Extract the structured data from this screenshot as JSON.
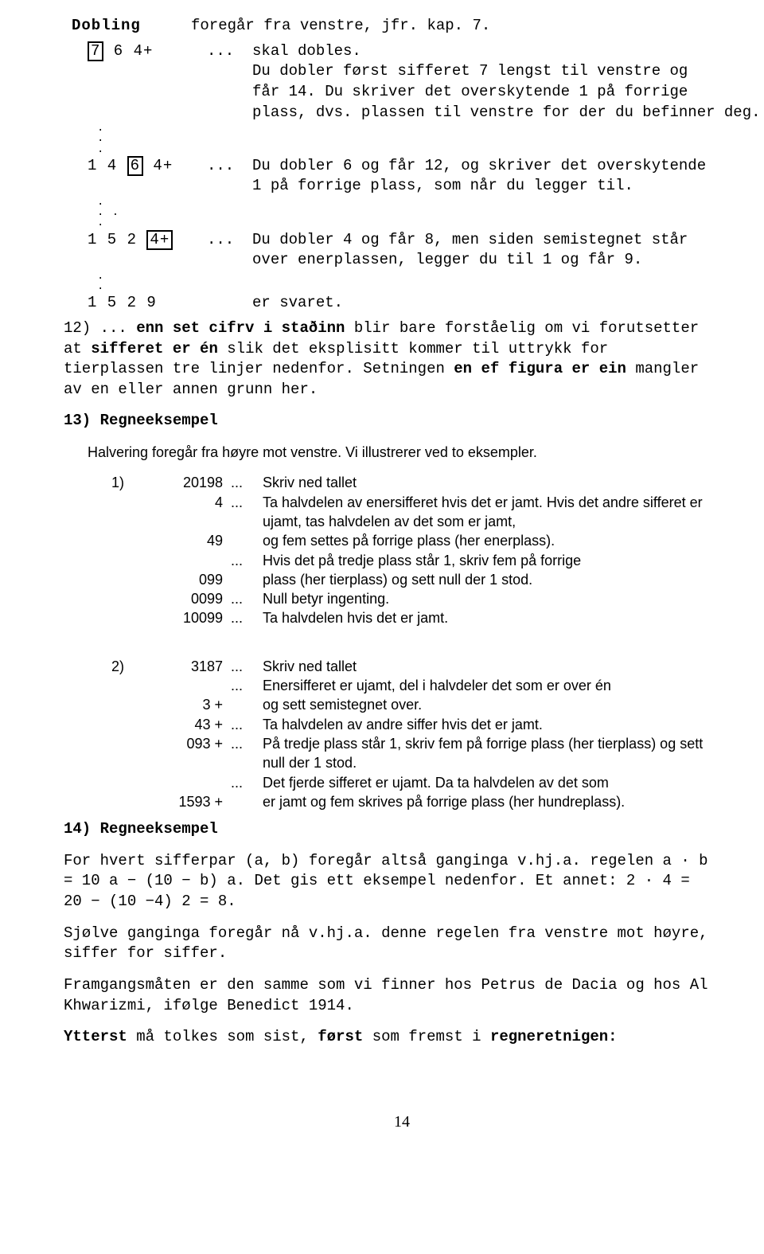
{
  "doblingHeader": "Dobling",
  "doblingHeaderRight": "foregår fra venstre, jfr. kap. 7.",
  "dobSteps": [
    {
      "leftPre": "",
      "boxed": "7",
      "leftPost": " 6 4+",
      "dots": "...",
      "lines": [
        "skal dobles.",
        "Du dobler først sifferet 7 lengst til venstre og",
        "får 14. Du skriver det overskytende 1 på forrige",
        "plass, dvs. plassen til venstre for der du befinner deg."
      ],
      "extraLeft": [
        ".",
        ".",
        "."
      ]
    },
    {
      "leftPre": "1 4 ",
      "boxed": "6",
      "leftPost": " 4+",
      "dots": "...",
      "lines": [
        "Du dobler 6 og får 12, og skriver det overskytende",
        "1 på forrige plass, som når du legger til."
      ],
      "extraLeft": [
        ".",
        ". .",
        "."
      ]
    },
    {
      "leftPre": "1 5 2 ",
      "boxed": "4+",
      "leftPost": "",
      "dots": "...",
      "lines": [
        "Du dobler 4 og får 8, men siden semistegnet står",
        "over enerplassen, legger du til 1 og får 9."
      ],
      "extraLeft": [
        ".",
        "."
      ]
    },
    {
      "leftPre": "1 5 2 9",
      "boxed": "",
      "leftPost": "",
      "dots": "",
      "lines": [
        "er svaret."
      ],
      "extraLeft": []
    }
  ],
  "note12": {
    "prefix": "12) ... ",
    "bold1": "enn set cifrv i staðinn",
    "mid1": " blir bare forståelig om vi forutsetter at ",
    "bold2": "sifferet er én",
    "mid2": " slik det eksplisitt kommer til uttrykk for tierplassen tre linjer nedenfor. Setningen ",
    "bold3": "en ef figura er ein",
    "mid3": " mangler av en eller annen grunn her."
  },
  "headings": {
    "h13": "13) Regneeksempel",
    "h14": "14) Regneeksempel"
  },
  "halveringIntro": "Halvering foregår fra høyre mot venstre. Vi illustrerer ved to eksempler.",
  "ex1": {
    "idx": "1)",
    "rows": [
      {
        "num": "20198",
        "dots": "...",
        "text": "Skriv ned tallet"
      },
      {
        "num": "4",
        "dots": "...",
        "text": "Ta halvdelen av enersifferet hvis det er jamt. Hvis det andre sifferet er ujamt, tas halvdelen av det som er jamt,"
      },
      {
        "num": "49",
        "dots": "",
        "text": "og fem settes på forrige plass (her enerplass)."
      },
      {
        "num": "",
        "dots": "...",
        "text": "Hvis det på tredje plass står 1, skriv fem på forrige"
      },
      {
        "num": "099",
        "dots": "",
        "text": "plass (her tierplass) og sett null der 1 stod."
      },
      {
        "num": "0099",
        "dots": "...",
        "text": "Null betyr ingenting."
      },
      {
        "num": "10099",
        "dots": "...",
        "text": "Ta halvdelen hvis det er jamt."
      }
    ]
  },
  "ex2": {
    "idx": "2)",
    "rows": [
      {
        "num": "3187",
        "dots": "...",
        "text": "Skriv ned tallet"
      },
      {
        "num": "",
        "dots": "...",
        "text": "Enersifferet er ujamt, del i halvdeler det som er over én"
      },
      {
        "num": "3 +",
        "dots": "",
        "text": "og sett semistegnet over."
      },
      {
        "num": "43 +",
        "dots": "...",
        "text": "Ta halvdelen av andre siffer hvis det er jamt."
      },
      {
        "num": "093 +",
        "dots": "...",
        "text": "På tredje plass står 1, skriv fem på forrige plass (her tierplass) og sett null der 1 stod."
      },
      {
        "num": "",
        "dots": "...",
        "text": "Det fjerde sifferet er ujamt. Da ta halvdelen av det som"
      },
      {
        "num": "1593 +",
        "dots": "",
        "text": "er jamt og fem skrives på forrige plass (her hundreplass)."
      }
    ]
  },
  "para1": "For hvert sifferpar (a, b) foregår altså ganginga v.hj.a. regelen a · b = 10 a − (10 − b) a. Det gis ett eksempel nedenfor. Et annet: 2 · 4 = 20 − (10 −4) 2 = 8.",
  "para2": "Sjølve ganginga foregår nå v.hj.a. denne regelen fra venstre mot høyre, siffer for siffer.",
  "para3": "Framgangsmåten er den samme som vi finner hos Petrus de Dacia og hos Al Khwarizmi, ifølge Benedict 1914.",
  "finalLine": {
    "bold1": "Ytterst",
    "mid1": " må tolkes som sist, ",
    "bold2": "først",
    "mid2": " som fremst i ",
    "bold3": "regneretnigen:"
  },
  "pageNum": "14"
}
